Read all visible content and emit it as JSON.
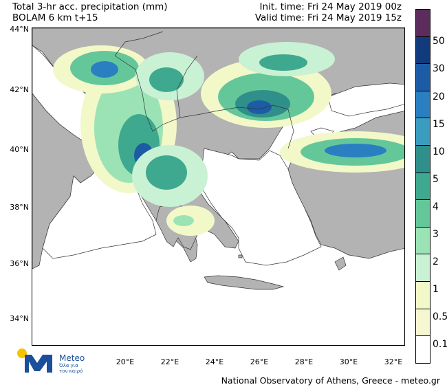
{
  "title": {
    "line1": "Total 3-hr acc. precipitation (mm)",
    "line2": "BOLAM 6 km t+15"
  },
  "times": {
    "init": "Init. time: Fri 24 May 2019 00z",
    "valid": "Valid time: Fri 24 May 2019 15z"
  },
  "lat_labels": [
    "44°N",
    "42°N",
    "40°N",
    "38°N",
    "36°N",
    "34°N"
  ],
  "lat_values": [
    44,
    42,
    40,
    38,
    36,
    34
  ],
  "lon_labels": [
    "20°E",
    "22°E",
    "24°E",
    "26°E",
    "28°E",
    "30°E",
    "32°E"
  ],
  "lon_values": [
    20,
    22,
    24,
    26,
    28,
    30,
    32
  ],
  "colorbar": {
    "labels": [
      "50",
      "30",
      "20",
      "15",
      "10",
      "5",
      "4",
      "3",
      "2",
      "1",
      "0.5",
      "0.1"
    ],
    "colors": [
      "#5b2c5c",
      "#123b7d",
      "#1c5ca6",
      "#2a7fc1",
      "#3a9cbf",
      "#2f8f8a",
      "#3fa98f",
      "#64c79a",
      "#9be3b5",
      "#c9f1d4",
      "#f3f8c9",
      "#f6f7d2",
      "#ffffff"
    ]
  },
  "colors": {
    "land": "#b3b3b3",
    "sea": "#ffffff"
  },
  "logo": {
    "name": "Meteo",
    "tagline_1": "Όλα για",
    "tagline_2": "τον καιρό"
  },
  "footer": "National Observatory of Athens, Greece - meteo.gr"
}
